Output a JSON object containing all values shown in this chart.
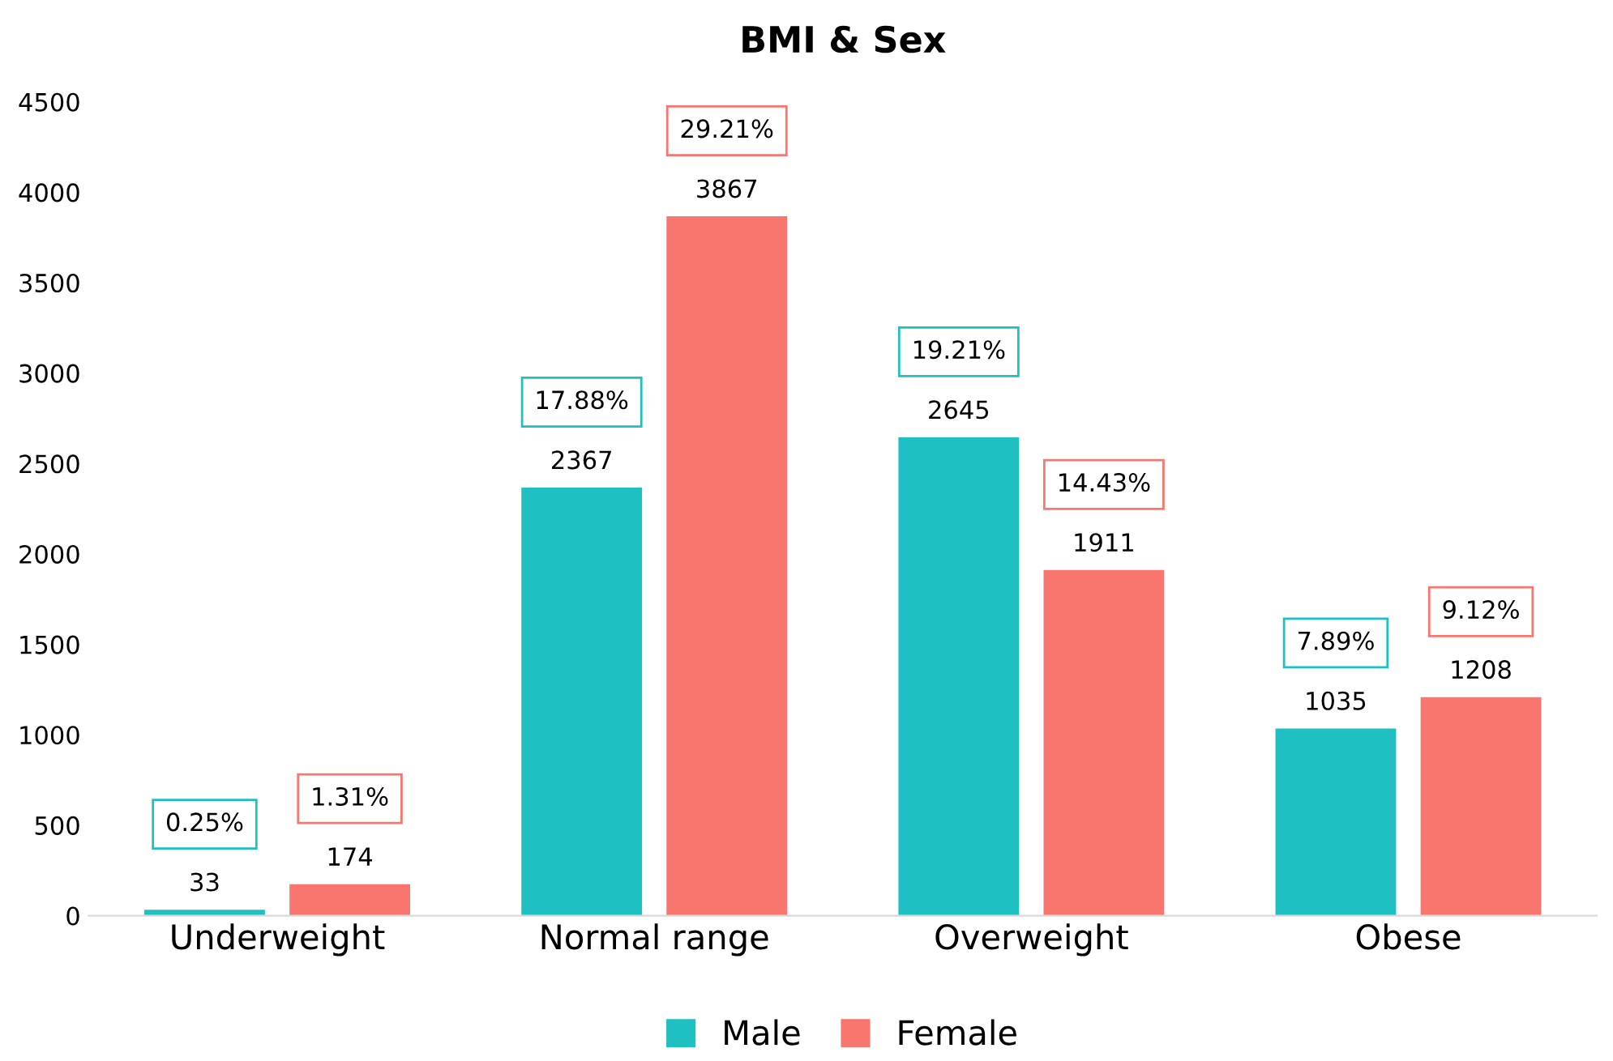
{
  "chart_data": {
    "type": "bar",
    "title": "BMI & Sex",
    "categories": [
      "Underweight",
      "Normal range",
      "Overweight",
      "Obese"
    ],
    "series": [
      {
        "name": "Male",
        "color": "#1fc0c2",
        "values": [
          33,
          2367,
          2645,
          1035
        ]
      },
      {
        "name": "Female",
        "color": "#f8766d",
        "values": [
          174,
          3867,
          1911,
          1208
        ]
      }
    ],
    "ylim": [
      0,
      4500
    ],
    "yticks": [
      0,
      500,
      1000,
      1500,
      2000,
      2500,
      3000,
      3500,
      4000,
      4500
    ],
    "data_labels": true,
    "grid": false,
    "legend": "bottom",
    "annotations": [
      "0.25%",
      "1.31%",
      "17.88%",
      "29.21%",
      "19.21%",
      "14.43%",
      "7.89%",
      "9.12%"
    ]
  }
}
